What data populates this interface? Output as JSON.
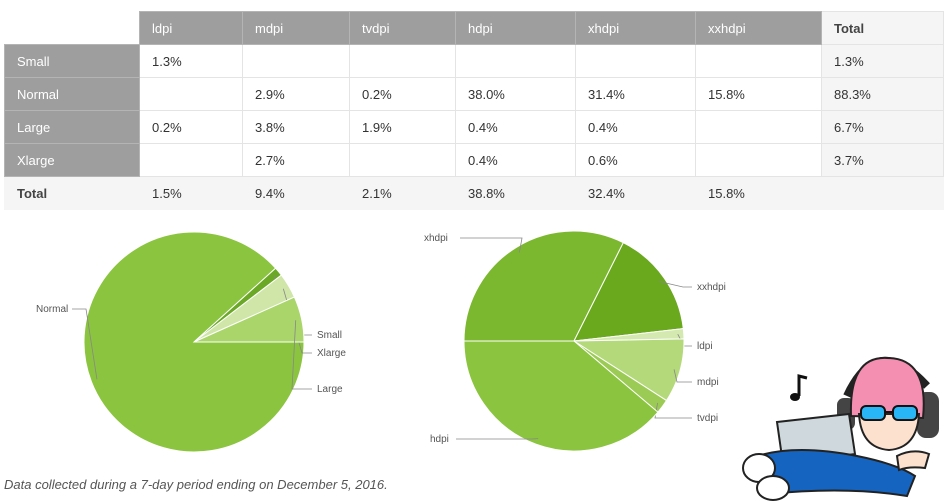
{
  "table": {
    "columns": [
      "ldpi",
      "mdpi",
      "tvdpi",
      "hdpi",
      "xhdpi",
      "xxhdpi",
      "Total"
    ],
    "rows": [
      {
        "label": "Small",
        "cells": [
          "1.3%",
          "",
          "",
          "",
          "",
          "",
          "1.3%"
        ]
      },
      {
        "label": "Normal",
        "cells": [
          "",
          "2.9%",
          "0.2%",
          "38.0%",
          "31.4%",
          "15.8%",
          "88.3%"
        ]
      },
      {
        "label": "Large",
        "cells": [
          "0.2%",
          "3.8%",
          "1.9%",
          "0.4%",
          "0.4%",
          "",
          "6.7%"
        ]
      },
      {
        "label": "Xlarge",
        "cells": [
          "",
          "2.7%",
          "",
          "0.4%",
          "0.6%",
          "",
          "3.7%"
        ]
      }
    ],
    "total_row": {
      "label": "Total",
      "cells": [
        "1.5%",
        "9.4%",
        "2.1%",
        "38.8%",
        "32.4%",
        "15.8%"
      ]
    }
  },
  "chart_data": [
    {
      "type": "pie",
      "labels": [
        "Normal",
        "Small",
        "Xlarge",
        "Large"
      ],
      "values": [
        88.3,
        1.3,
        3.7,
        6.7
      ],
      "colors": [
        "#8bc43f",
        "#6aa825",
        "#cfe6a8",
        "#a9d56b"
      ],
      "start_angle_deg": 0
    },
    {
      "type": "pie",
      "labels": [
        "xhdpi",
        "xxhdpi",
        "ldpi",
        "mdpi",
        "tvdpi",
        "hdpi"
      ],
      "values": [
        32.4,
        15.8,
        1.5,
        9.4,
        2.1,
        38.8
      ],
      "colors": [
        "#7cb82f",
        "#6aa81e",
        "#d4e9b0",
        "#b4d97a",
        "#9ccb55",
        "#8bc43f"
      ],
      "start_angle_deg": 180
    }
  ],
  "caption": "Data collected during a 7-day period ending on December 5, 2016.",
  "colors": {
    "header_gray": "#9e9e9e",
    "total_bg": "#f5f5f5"
  }
}
